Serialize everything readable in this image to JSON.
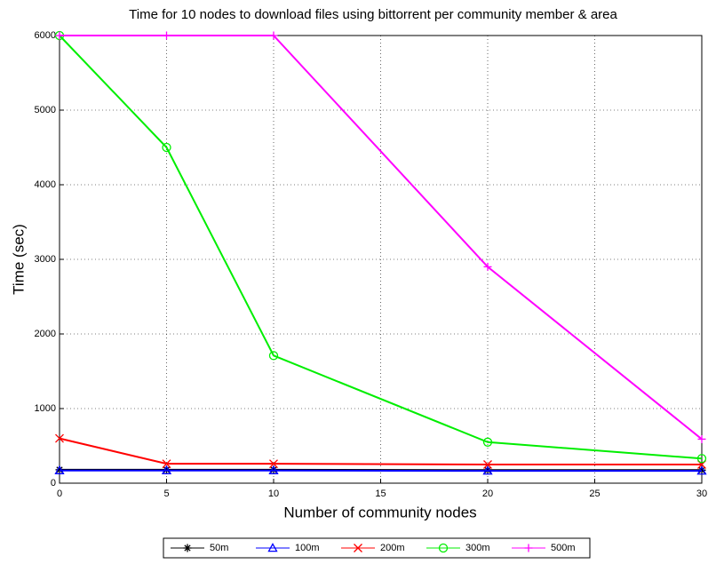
{
  "chart_data": {
    "type": "line",
    "title": "Time for 10 nodes to download files using bittorrent per community member & area",
    "x_label": "Number of community nodes",
    "y_label": "Time (sec)",
    "x": [
      0,
      5,
      10,
      20,
      30
    ],
    "series": [
      {
        "name": "50m",
        "color": "#000000",
        "marker": "star",
        "values": [
          180,
          180,
          180,
          175,
          175
        ]
      },
      {
        "name": "100m",
        "color": "#0000ff",
        "marker": "triangle",
        "values": [
          170,
          170,
          170,
          165,
          165
        ]
      },
      {
        "name": "200m",
        "color": "#ff0000",
        "marker": "x",
        "values": [
          600,
          260,
          260,
          250,
          250
        ]
      },
      {
        "name": "300m",
        "color": "#00ee00",
        "marker": "circle",
        "values": [
          6000,
          4500,
          1710,
          550,
          330
        ]
      },
      {
        "name": "500m",
        "color": "#ff00ff",
        "marker": "plus",
        "values": [
          6000,
          6000,
          6000,
          2900,
          590
        ]
      }
    ],
    "xlim": [
      0,
      30
    ],
    "xticks": [
      0,
      5,
      10,
      15,
      20,
      25,
      30
    ],
    "ylim": [
      0,
      6000
    ],
    "yticks": [
      0,
      1000,
      2000,
      3000,
      4000,
      5000,
      6000
    ],
    "grid": true,
    "legend": "bottom"
  }
}
